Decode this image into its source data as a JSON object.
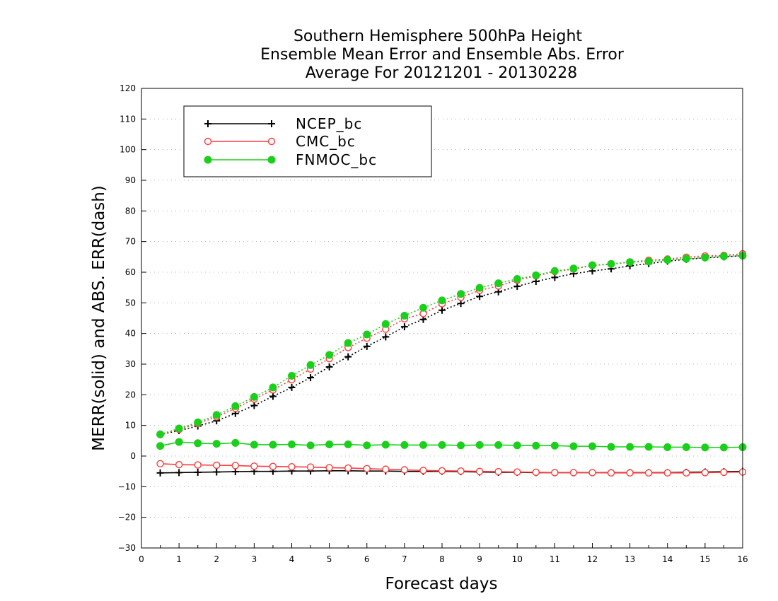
{
  "chart_data": {
    "type": "line",
    "title": [
      "Southern Hemisphere 500hPa Height",
      "Ensemble Mean Error and Ensemble Abs. Error",
      "Average For 20121201 - 20130228"
    ],
    "xlabel": "Forecast days",
    "ylabel": "MERR(solid) and ABS. ERR(dash)",
    "xlim": [
      0,
      16
    ],
    "ylim": [
      -30,
      120
    ],
    "xticks": [
      "0",
      "1",
      "2",
      "3",
      "4",
      "5",
      "6",
      "7",
      "8",
      "9",
      "10",
      "11",
      "12",
      "13",
      "14",
      "15",
      "16"
    ],
    "yticks": [
      "−30",
      "−20",
      "−10",
      "0",
      "10",
      "20",
      "30",
      "40",
      "50",
      "60",
      "70",
      "80",
      "90",
      "100",
      "110",
      "120"
    ],
    "grid": true,
    "legend": {
      "position": "top-left",
      "entries": [
        {
          "label": "NCEP_bc",
          "series": "NCEP_bc"
        },
        {
          "label": "CMC_bc",
          "series": "CMC_bc"
        },
        {
          "label": "FNMOC_bc",
          "series": "FNMOC_bc"
        }
      ]
    },
    "x": [
      0.5,
      1,
      1.5,
      2,
      2.5,
      3,
      3.5,
      4,
      4.5,
      5,
      5.5,
      6,
      6.5,
      7,
      7.5,
      8,
      8.5,
      9,
      9.5,
      10,
      10.5,
      11,
      11.5,
      12,
      12.5,
      13,
      13.5,
      14,
      14.5,
      15,
      15.5,
      16
    ],
    "series": [
      {
        "name": "NCEP_bc",
        "color": "#000000",
        "marker": "plus",
        "merr": [
          -5.5,
          -5.4,
          -5.3,
          -5.2,
          -5.1,
          -5.0,
          -5.0,
          -4.9,
          -4.9,
          -4.8,
          -4.8,
          -4.9,
          -4.9,
          -5.0,
          -5.0,
          -5.0,
          -5.1,
          -5.2,
          -5.3,
          -5.3,
          -5.4,
          -5.4,
          -5.4,
          -5.4,
          -5.4,
          -5.4,
          -5.4,
          -5.4,
          -5.3,
          -5.2,
          -5.1,
          -5.0
        ],
        "abserr": [
          7.0,
          8.3,
          9.8,
          11.5,
          13.9,
          16.5,
          19.5,
          22.4,
          25.6,
          29.1,
          32.4,
          35.8,
          38.9,
          42.2,
          44.6,
          47.6,
          49.8,
          52.1,
          53.6,
          55.4,
          57.0,
          58.3,
          59.5,
          60.4,
          61.1,
          62.1,
          62.8,
          63.6,
          64.2,
          64.7,
          65.0,
          65.4
        ]
      },
      {
        "name": "CMC_bc",
        "color": "#ff3b3b",
        "marker": "open-circle",
        "merr": [
          -2.5,
          -2.8,
          -2.9,
          -3.0,
          -3.1,
          -3.3,
          -3.4,
          -3.5,
          -3.6,
          -3.8,
          -3.9,
          -4.1,
          -4.3,
          -4.5,
          -4.7,
          -4.8,
          -4.9,
          -5.0,
          -5.1,
          -5.2,
          -5.3,
          -5.4,
          -5.4,
          -5.4,
          -5.5,
          -5.5,
          -5.5,
          -5.5,
          -5.5,
          -5.4,
          -5.3,
          -5.2
        ],
        "abserr": [
          7.0,
          8.7,
          10.6,
          12.8,
          15.6,
          18.6,
          21.6,
          24.9,
          28.4,
          31.8,
          35.4,
          38.5,
          41.4,
          44.8,
          46.5,
          49.7,
          51.8,
          54.1,
          55.5,
          57.4,
          58.8,
          60.2,
          61.0,
          62.2,
          62.6,
          63.3,
          63.9,
          64.3,
          64.9,
          65.3,
          65.5,
          66.0
        ]
      },
      {
        "name": "FNMOC_bc",
        "color": "#1ad01a",
        "marker": "filled-circle",
        "merr": [
          3.3,
          4.6,
          4.2,
          4.0,
          4.3,
          3.7,
          3.7,
          3.8,
          3.5,
          3.8,
          3.8,
          3.5,
          3.7,
          3.6,
          3.6,
          3.6,
          3.5,
          3.6,
          3.6,
          3.5,
          3.4,
          3.4,
          3.2,
          3.2,
          3.0,
          3.0,
          3.0,
          2.9,
          2.9,
          2.8,
          2.8,
          2.9
        ],
        "abserr": [
          7.1,
          9.0,
          11.0,
          13.4,
          16.3,
          19.3,
          22.4,
          26.2,
          29.7,
          33.0,
          36.9,
          39.7,
          43.1,
          45.8,
          48.4,
          50.8,
          52.9,
          54.9,
          56.4,
          57.8,
          59.0,
          60.4,
          61.2,
          62.3,
          62.7,
          63.3,
          63.5,
          64.0,
          64.4,
          64.8,
          65.2,
          65.4
        ]
      }
    ]
  }
}
